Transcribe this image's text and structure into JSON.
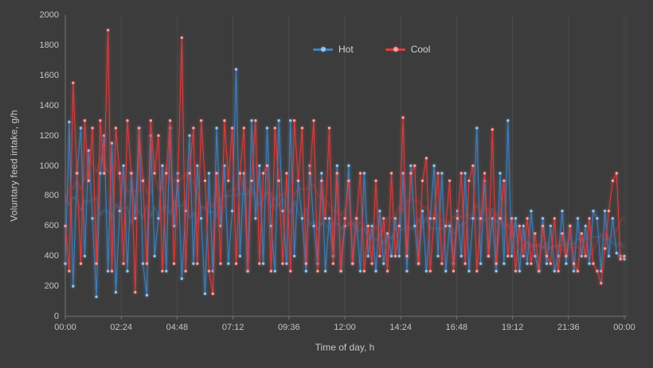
{
  "window": {
    "background": "#3c3c3c",
    "grid_color": "#4a4a4a",
    "axis_color": "#737373",
    "text_color": "#c8c8c8"
  },
  "chart_data": {
    "type": "line",
    "title": "",
    "xlabel": "Time of day, h",
    "ylabel": "Voluntary feed intake, g/h",
    "x_tick_labels": [
      "00:00",
      "02:24",
      "04:48",
      "07:12",
      "09:36",
      "12:00",
      "14:24",
      "16:48",
      "19:12",
      "21:36",
      "00:00"
    ],
    "y_tick_values": [
      0,
      200,
      400,
      600,
      800,
      1000,
      1200,
      1400,
      1600,
      1800,
      2000
    ],
    "ylim": [
      0,
      2000
    ],
    "x_range_hours": 24,
    "sample_interval_minutes": 10,
    "grid": "vertical-only",
    "legend_position": "top-center",
    "markers": true,
    "trend_line": {
      "moving_average_window": 9,
      "opacity": 0.32
    },
    "series": [
      {
        "name": "Hot",
        "color": "#3f82c2",
        "marker_color": "#9ec4e6",
        "values": [
          350,
          1290,
          200,
          950,
          1250,
          400,
          1100,
          650,
          130,
          950,
          1200,
          300,
          1150,
          160,
          700,
          1000,
          300,
          950,
          650,
          1250,
          350,
          140,
          1200,
          400,
          650,
          1000,
          300,
          1250,
          600,
          950,
          250,
          700,
          1200,
          350,
          1000,
          650,
          150,
          950,
          300,
          1250,
          600,
          1000,
          350,
          700,
          1640,
          400,
          950,
          300,
          1300,
          650,
          1000,
          350,
          1250,
          600,
          300,
          1300,
          700,
          350,
          1300,
          400,
          900,
          650,
          300,
          1000,
          600,
          350,
          950,
          300,
          650,
          400,
          1000,
          300,
          600,
          1000,
          350,
          650,
          300,
          950,
          400,
          600,
          300,
          700,
          350,
          550,
          400,
          650,
          400,
          950,
          300,
          1000,
          600,
          350,
          700,
          300,
          650,
          1000,
          400,
          950,
          300,
          600,
          350,
          700,
          400,
          950,
          300,
          650,
          1250,
          350,
          900,
          400,
          650,
          300,
          950,
          350,
          1300,
          400,
          650,
          300,
          600,
          350,
          700,
          400,
          300,
          650,
          350,
          600,
          300,
          400,
          700,
          350,
          600,
          300,
          650,
          400,
          600,
          350,
          700,
          650,
          300,
          700,
          400,
          650,
          420,
          400,
          380
        ]
      },
      {
        "name": "Cool",
        "color": "#e13c3c",
        "marker_color": "#f0a3a3",
        "values": [
          600,
          300,
          1550,
          950,
          350,
          1300,
          900,
          1250,
          350,
          1300,
          950,
          1900,
          300,
          1250,
          950,
          350,
          1300,
          950,
          160,
          1250,
          900,
          350,
          1300,
          950,
          1200,
          300,
          950,
          1300,
          350,
          900,
          1850,
          300,
          950,
          1250,
          350,
          1300,
          900,
          300,
          150,
          950,
          350,
          1300,
          900,
          1250,
          350,
          950,
          1250,
          300,
          900,
          1300,
          350,
          950,
          1000,
          300,
          1250,
          900,
          350,
          950,
          300,
          1300,
          900,
          1250,
          350,
          950,
          1300,
          300,
          900,
          650,
          1250,
          350,
          950,
          300,
          650,
          900,
          350,
          650,
          950,
          300,
          600,
          350,
          900,
          400,
          650,
          300,
          950,
          400,
          600,
          1320,
          400,
          950,
          1000,
          350,
          900,
          1050,
          300,
          650,
          950,
          350,
          600,
          900,
          300,
          650,
          950,
          350,
          900,
          1000,
          300,
          650,
          950,
          400,
          1240,
          350,
          650,
          900,
          400,
          650,
          300,
          600,
          400,
          650,
          350,
          550,
          300,
          600,
          400,
          350,
          650,
          300,
          550,
          400,
          600,
          350,
          300,
          550,
          400,
          650,
          350,
          300,
          220,
          450,
          700,
          900,
          950,
          380,
          400
        ]
      }
    ]
  }
}
